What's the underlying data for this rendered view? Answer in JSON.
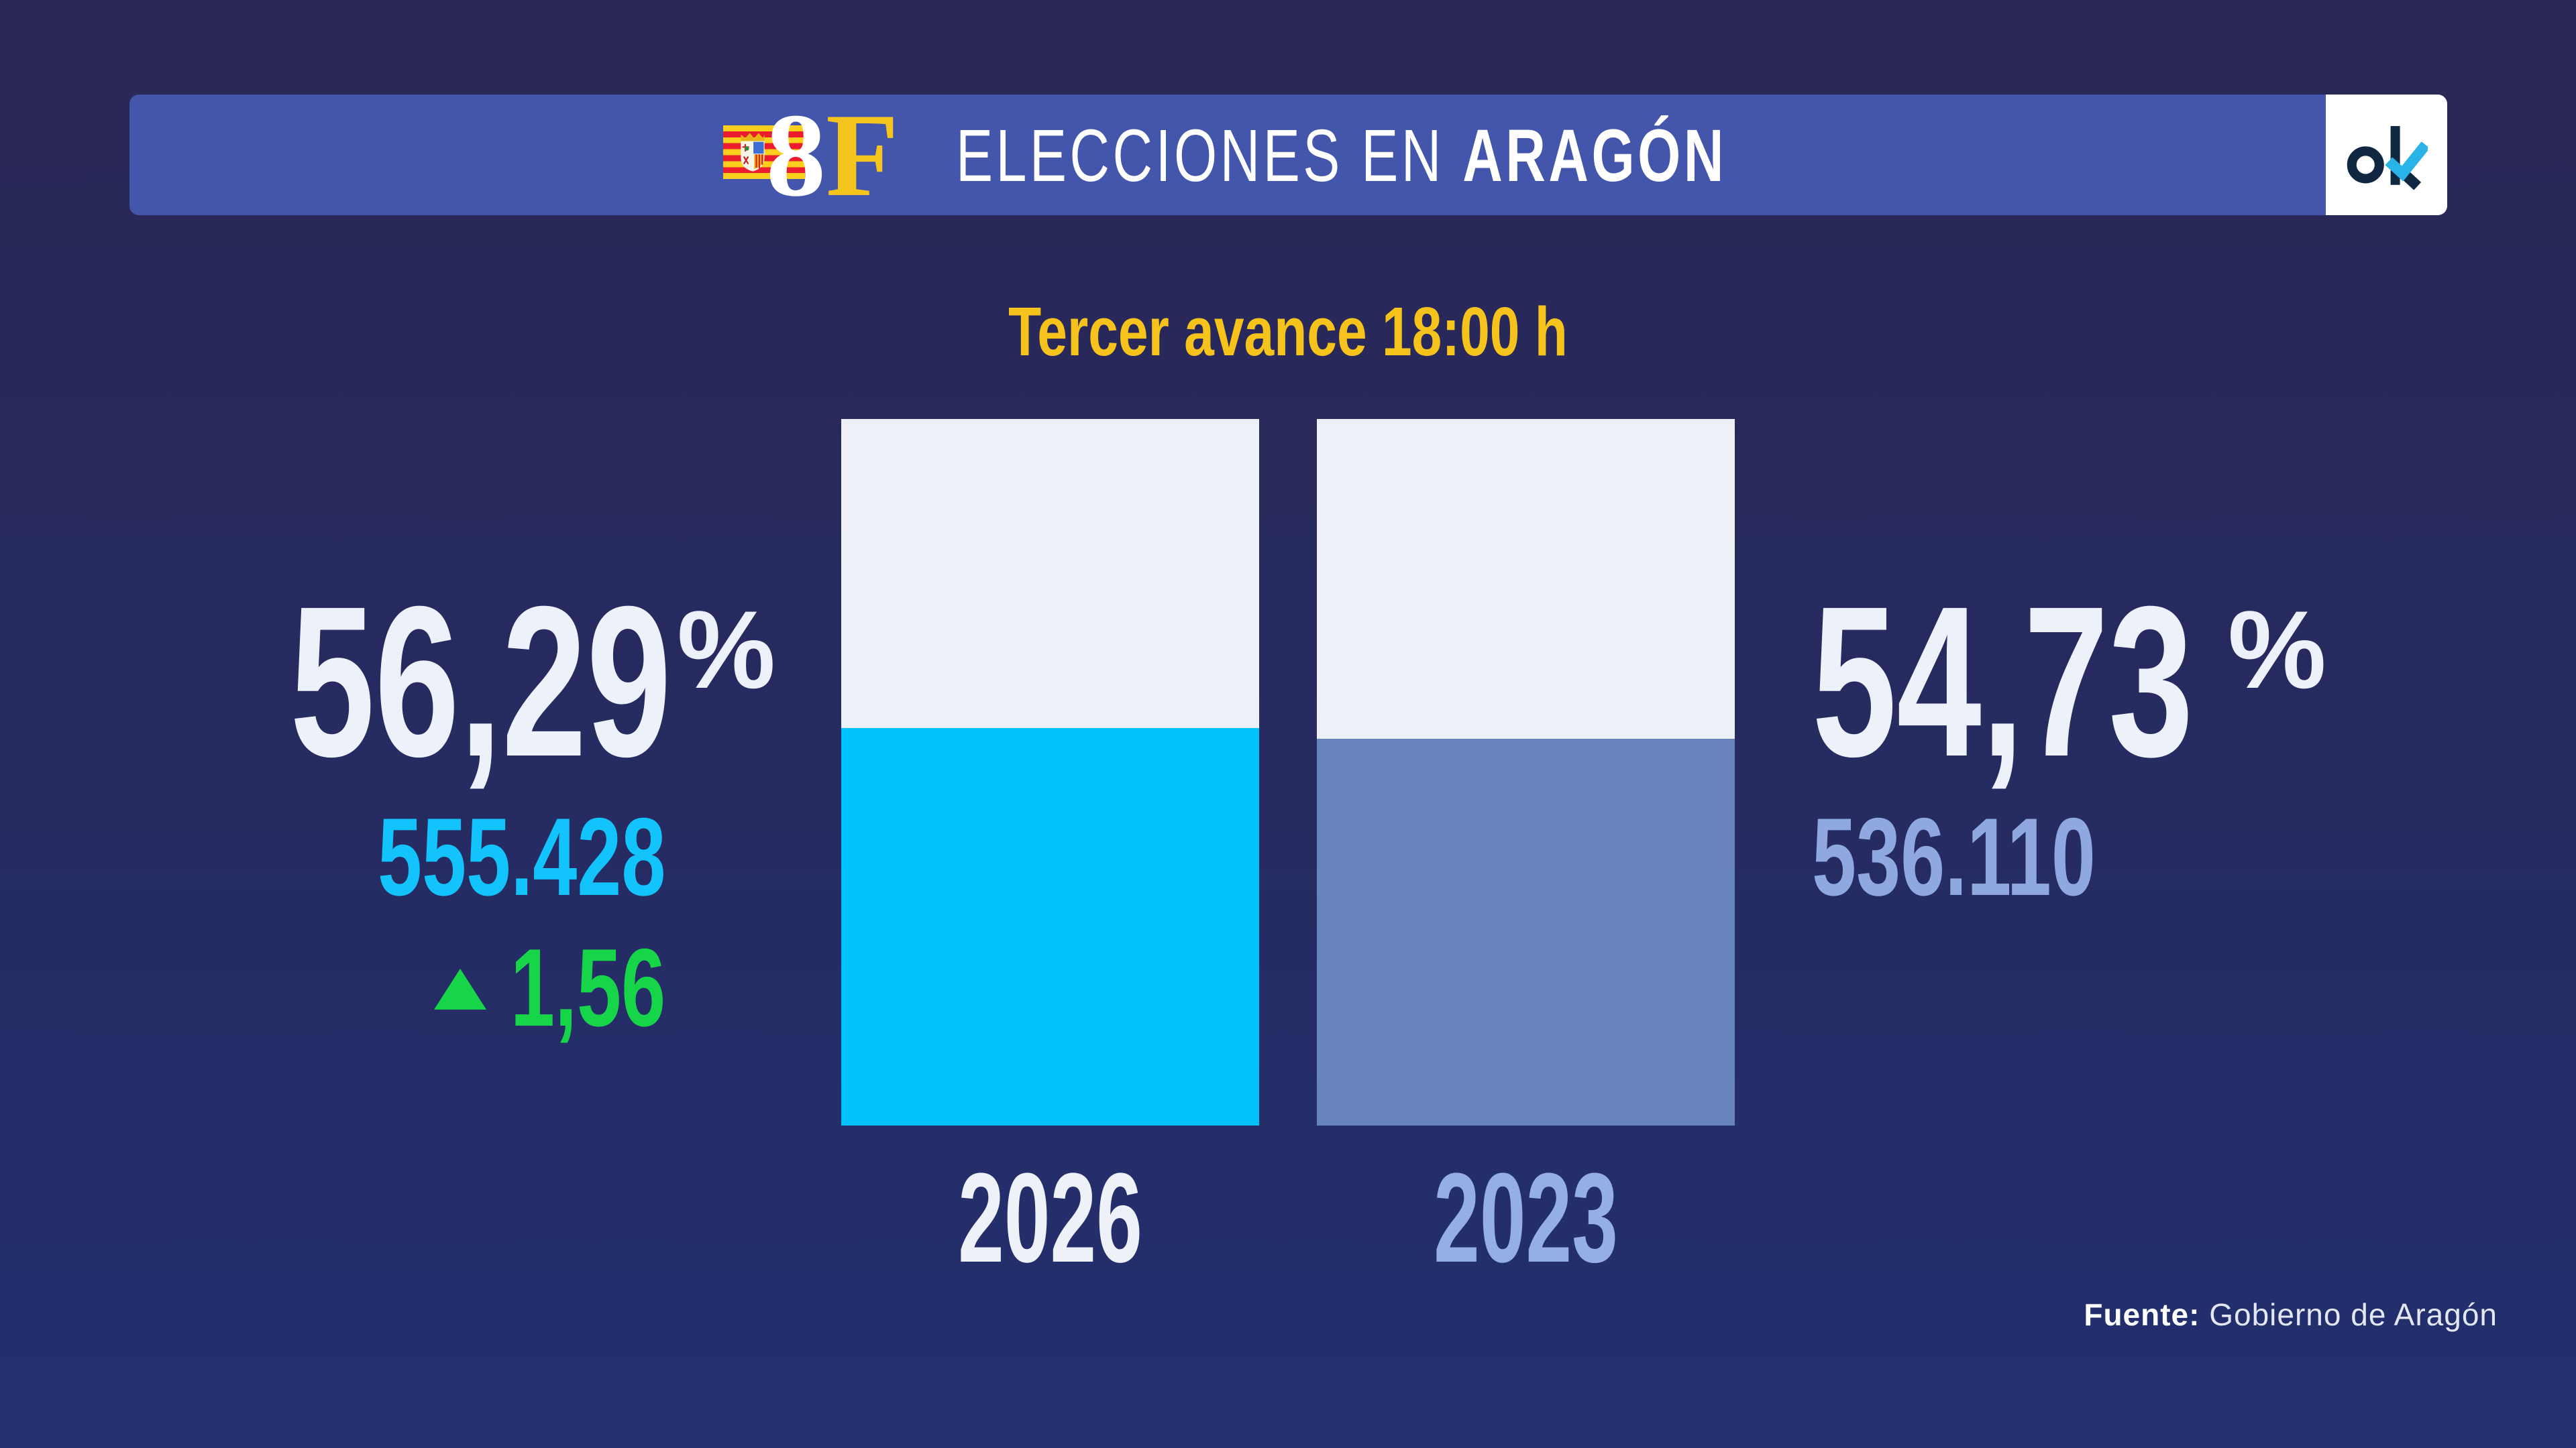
{
  "header": {
    "logo_number": "8",
    "logo_letter": "F",
    "flag": "aragon-flag",
    "title_regular": "ELECCIONES EN ",
    "title_bold": "ARAGÓN",
    "brand_logo": "ok"
  },
  "chart_data": {
    "type": "bar",
    "title": "Tercer avance 18:00 h",
    "categories": [
      "2026",
      "2023"
    ],
    "values": [
      56.29,
      54.73
    ],
    "value_labels": [
      "56,29",
      "54,73"
    ],
    "unit": "%",
    "ylim": [
      0,
      100
    ],
    "grid": false,
    "legend_position": "none",
    "voters_labels": [
      "555.428",
      "536.110"
    ],
    "change_label": "1,56",
    "change_direction": "up",
    "bar_colors": [
      "#00c2fb",
      "#6884bc"
    ],
    "bar_track_color": "#edf0f6"
  },
  "footer": {
    "source_label": "Fuente:",
    "source_value": " Gobierno de Aragón"
  },
  "colors": {
    "background_top": "#2a2855",
    "background_bottom": "#22306f",
    "banner_blue": "#4456ac",
    "accent_yellow": "#f6c31c",
    "accent_cyan": "#00c2fb",
    "accent_green": "#17d549",
    "muted_blue": "#6884bc",
    "periwinkle_text": "#8fa9e0",
    "off_white": "#edf1f9",
    "brand_navy": "#102741",
    "brand_cyan": "#2ab3e8",
    "flag_yellow": "#fccf1c",
    "flag_red": "#ea1c2d"
  }
}
